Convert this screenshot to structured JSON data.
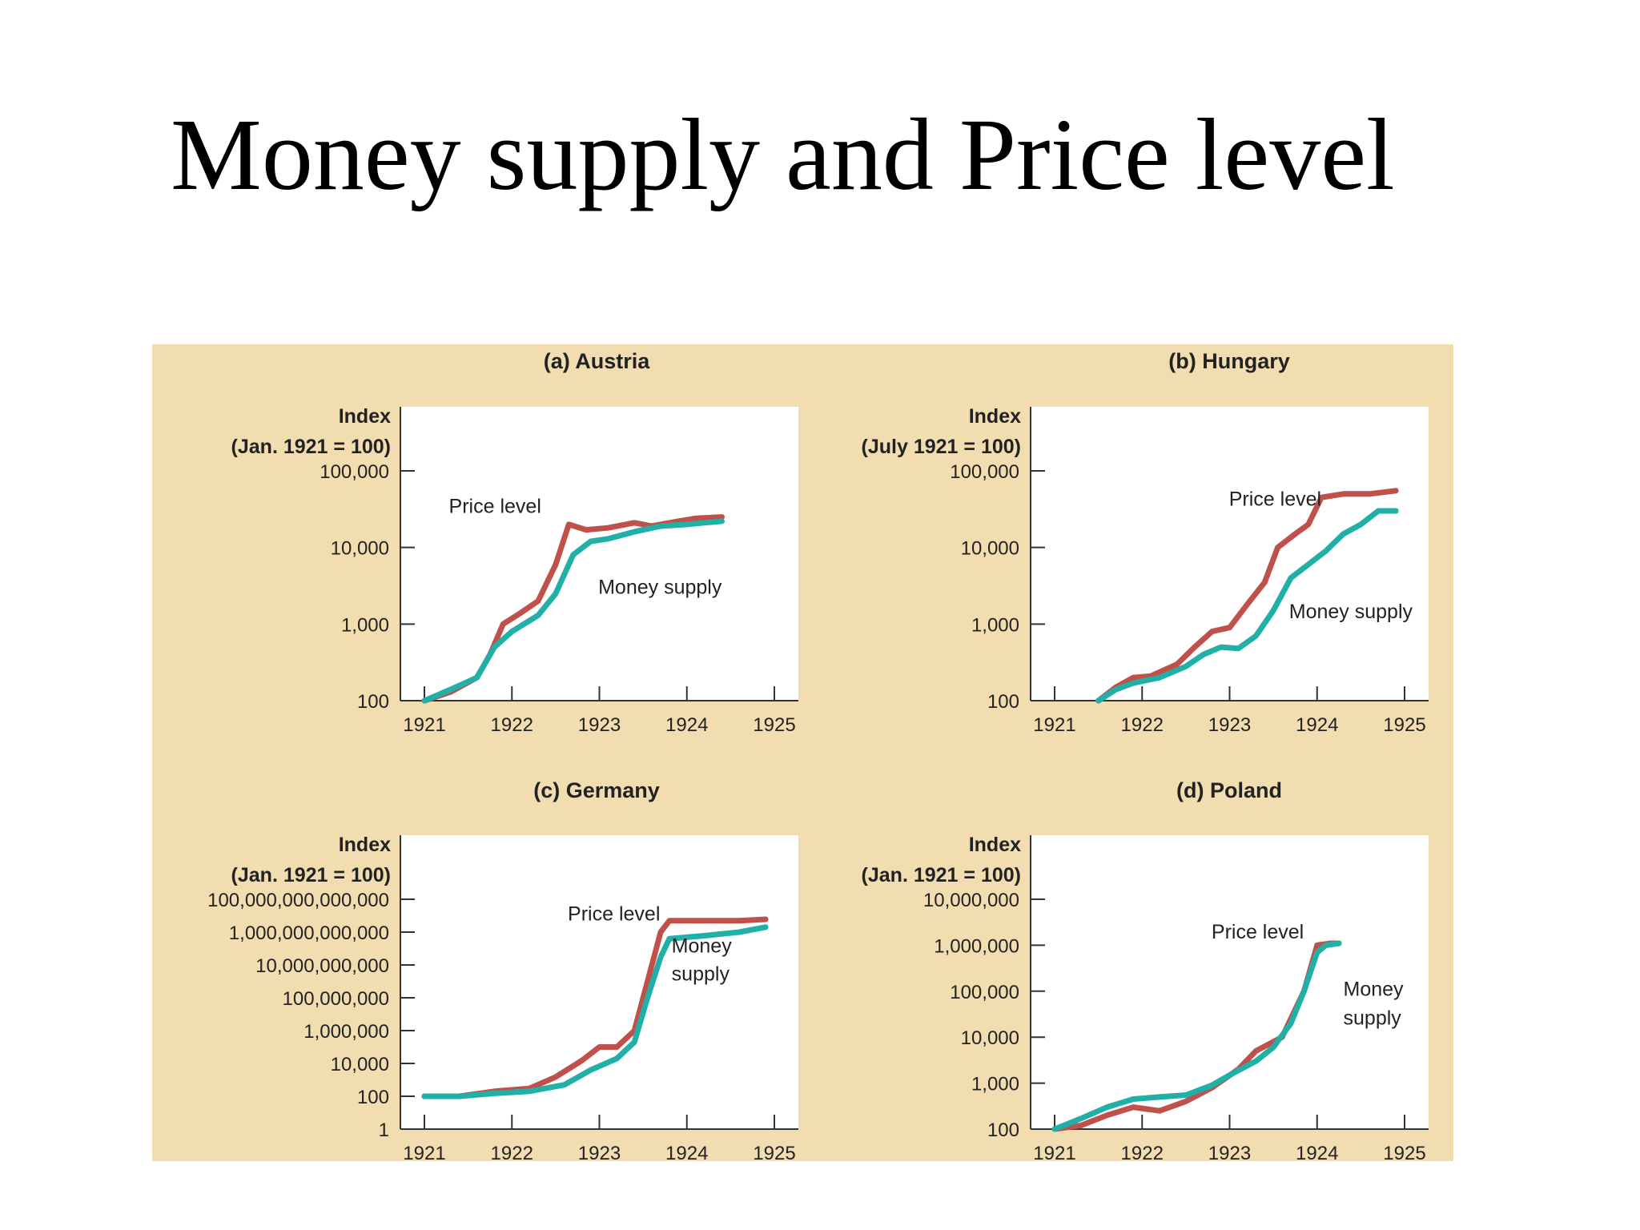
{
  "slide": {
    "title": "Money supply and Price level"
  },
  "colors": {
    "panel_background": "#f2ddb0",
    "plot_background": "#ffffff",
    "price_level": "#c0504a",
    "money_supply": "#21b0a8",
    "axis": "#333333"
  },
  "chart_data": [
    {
      "type": "line",
      "title": "(a) Austria",
      "ylabel": [
        "Index",
        "(Jan. 1921 = 100)"
      ],
      "yscale": "log",
      "ylim": [
        100,
        100000
      ],
      "yticks": [
        100,
        1000,
        10000,
        100000
      ],
      "yticklabels": [
        "100",
        "1,000",
        "10,000",
        "100,000"
      ],
      "xlim": [
        1921,
        1925
      ],
      "xticks": [
        "1921",
        "1922",
        "1923",
        "1924",
        "1925"
      ],
      "series": [
        {
          "name": "Price level",
          "color": "#c0504a",
          "points": [
            [
              1921.0,
              100
            ],
            [
              1921.3,
              130
            ],
            [
              1921.6,
              200
            ],
            [
              1921.75,
              400
            ],
            [
              1921.9,
              1000
            ],
            [
              1922.1,
              1400
            ],
            [
              1922.3,
              2000
            ],
            [
              1922.5,
              6000
            ],
            [
              1922.65,
              20000
            ],
            [
              1922.85,
              17000
            ],
            [
              1923.1,
              18000
            ],
            [
              1923.4,
              21000
            ],
            [
              1923.6,
              19000
            ],
            [
              1923.9,
              22000
            ],
            [
              1924.1,
              24000
            ],
            [
              1924.4,
              25000
            ]
          ]
        },
        {
          "name": "Money supply",
          "color": "#21b0a8",
          "points": [
            [
              1921.0,
              100
            ],
            [
              1921.3,
              140
            ],
            [
              1921.6,
              200
            ],
            [
              1921.8,
              500
            ],
            [
              1922.0,
              800
            ],
            [
              1922.3,
              1300
            ],
            [
              1922.5,
              2500
            ],
            [
              1922.7,
              8000
            ],
            [
              1922.9,
              12000
            ],
            [
              1923.1,
              13000
            ],
            [
              1923.4,
              16000
            ],
            [
              1923.7,
              19000
            ],
            [
              1924.0,
              20000
            ],
            [
              1924.2,
              21000
            ],
            [
              1924.4,
              22000
            ]
          ]
        }
      ],
      "labels": [
        {
          "text": "Price level",
          "series": "Price level"
        },
        {
          "text": "Money supply",
          "series": "Money supply"
        }
      ]
    },
    {
      "type": "line",
      "title": "(b) Hungary",
      "ylabel": [
        "Index",
        "(July 1921 = 100)"
      ],
      "yscale": "log",
      "ylim": [
        100,
        100000
      ],
      "yticks": [
        100,
        1000,
        10000,
        100000
      ],
      "yticklabels": [
        "100",
        "1,000",
        "10,000",
        "100,000"
      ],
      "xlim": [
        1921,
        1925
      ],
      "xticks": [
        "1921",
        "1922",
        "1923",
        "1924",
        "1925"
      ],
      "series": [
        {
          "name": "Price level",
          "color": "#c0504a",
          "points": [
            [
              1921.5,
              100
            ],
            [
              1921.7,
              150
            ],
            [
              1921.9,
              200
            ],
            [
              1922.1,
              210
            ],
            [
              1922.4,
              300
            ],
            [
              1922.6,
              500
            ],
            [
              1922.8,
              800
            ],
            [
              1923.0,
              900
            ],
            [
              1923.2,
              1800
            ],
            [
              1923.4,
              3500
            ],
            [
              1923.55,
              10000
            ],
            [
              1923.75,
              15000
            ],
            [
              1923.9,
              20000
            ],
            [
              1924.05,
              45000
            ],
            [
              1924.3,
              50000
            ],
            [
              1924.6,
              50000
            ],
            [
              1924.9,
              55000
            ]
          ]
        },
        {
          "name": "Money supply",
          "color": "#21b0a8",
          "points": [
            [
              1921.5,
              100
            ],
            [
              1921.7,
              140
            ],
            [
              1921.9,
              170
            ],
            [
              1922.2,
              200
            ],
            [
              1922.5,
              280
            ],
            [
              1922.7,
              400
            ],
            [
              1922.9,
              500
            ],
            [
              1923.1,
              480
            ],
            [
              1923.3,
              700
            ],
            [
              1923.5,
              1500
            ],
            [
              1923.7,
              4000
            ],
            [
              1923.9,
              6000
            ],
            [
              1924.1,
              9000
            ],
            [
              1924.3,
              15000
            ],
            [
              1924.5,
              20000
            ],
            [
              1924.7,
              30000
            ],
            [
              1924.9,
              30000
            ]
          ]
        }
      ],
      "labels": [
        {
          "text": "Price level",
          "series": "Price level"
        },
        {
          "text": "Money supply",
          "series": "Money supply"
        }
      ]
    },
    {
      "type": "line",
      "title": "(c) Germany",
      "ylabel": [
        "Index",
        "(Jan. 1921 = 100)"
      ],
      "yscale": "log",
      "ylim": [
        1,
        100000000000000
      ],
      "yticks": [
        1,
        100,
        10000,
        1000000,
        100000000,
        10000000000,
        1000000000000,
        100000000000000
      ],
      "yticklabels": [
        "1",
        "100",
        "10,000",
        "1,000,000",
        "100,000,000",
        "10,000,000,000",
        "1,000,000,000,000",
        "100,000,000,000,000"
      ],
      "xlim": [
        1921,
        1925
      ],
      "xticks": [
        "1921",
        "1922",
        "1923",
        "1924",
        "1925"
      ],
      "series": [
        {
          "name": "Price level",
          "color": "#c0504a",
          "points": [
            [
              1921.0,
              100
            ],
            [
              1921.4,
              100
            ],
            [
              1921.8,
              200
            ],
            [
              1922.2,
              300
            ],
            [
              1922.5,
              1500
            ],
            [
              1922.8,
              15000
            ],
            [
              1923.0,
              100000
            ],
            [
              1923.2,
              100000
            ],
            [
              1923.4,
              1000000
            ],
            [
              1923.55,
              1000000000
            ],
            [
              1923.7,
              1000000000000
            ],
            [
              1923.8,
              5000000000000
            ],
            [
              1924.2,
              5000000000000
            ],
            [
              1924.6,
              5000000000000
            ],
            [
              1924.9,
              6000000000000
            ]
          ]
        },
        {
          "name": "Money supply",
          "color": "#21b0a8",
          "points": [
            [
              1921.0,
              100
            ],
            [
              1921.4,
              100
            ],
            [
              1921.8,
              150
            ],
            [
              1922.2,
              200
            ],
            [
              1922.6,
              500
            ],
            [
              1922.9,
              4000
            ],
            [
              1923.2,
              20000
            ],
            [
              1923.4,
              200000
            ],
            [
              1923.55,
              100000000
            ],
            [
              1923.7,
              30000000000
            ],
            [
              1923.8,
              400000000000
            ],
            [
              1924.2,
              600000000000
            ],
            [
              1924.6,
              1000000000000
            ],
            [
              1924.9,
              2000000000000
            ]
          ]
        }
      ],
      "labels": [
        {
          "text": "Price level",
          "series": "Price level"
        },
        {
          "text": "Money",
          "series": "Money supply"
        },
        {
          "text": "supply",
          "series": "Money supply"
        }
      ]
    },
    {
      "type": "line",
      "title": "(d) Poland",
      "ylabel": [
        "Index",
        "(Jan. 1921 = 100)"
      ],
      "yscale": "log",
      "ylim": [
        100,
        10000000
      ],
      "yticks": [
        100,
        1000,
        10000,
        100000,
        1000000,
        10000000
      ],
      "yticklabels": [
        "100",
        "1,000",
        "10,000",
        "100,000",
        "1,000,000",
        "10,000,000"
      ],
      "xlim": [
        1921,
        1925
      ],
      "xticks": [
        "1921",
        "1922",
        "1923",
        "1924",
        "1925"
      ],
      "series": [
        {
          "name": "Price level",
          "color": "#c0504a",
          "points": [
            [
              1921.0,
              100
            ],
            [
              1921.3,
              120
            ],
            [
              1921.6,
              200
            ],
            [
              1921.9,
              300
            ],
            [
              1922.2,
              250
            ],
            [
              1922.5,
              400
            ],
            [
              1922.8,
              800
            ],
            [
              1923.1,
              2000
            ],
            [
              1923.3,
              5000
            ],
            [
              1923.6,
              10000
            ],
            [
              1923.85,
              100000
            ],
            [
              1924.0,
              1000000
            ],
            [
              1924.15,
              1100000
            ],
            [
              1924.25,
              1100000
            ]
          ]
        },
        {
          "name": "Money supply",
          "color": "#21b0a8",
          "points": [
            [
              1921.0,
              100
            ],
            [
              1921.3,
              170
            ],
            [
              1921.6,
              300
            ],
            [
              1921.9,
              450
            ],
            [
              1922.2,
              500
            ],
            [
              1922.5,
              550
            ],
            [
              1922.8,
              900
            ],
            [
              1923.0,
              1500
            ],
            [
              1923.3,
              3000
            ],
            [
              1923.5,
              6000
            ],
            [
              1923.7,
              20000
            ],
            [
              1923.85,
              100000
            ],
            [
              1924.0,
              700000
            ],
            [
              1924.1,
              1000000
            ],
            [
              1924.25,
              1100000
            ]
          ]
        }
      ],
      "labels": [
        {
          "text": "Price level",
          "series": "Price level"
        },
        {
          "text": "Money",
          "series": "Money supply"
        },
        {
          "text": "supply",
          "series": "Money supply"
        }
      ]
    }
  ]
}
